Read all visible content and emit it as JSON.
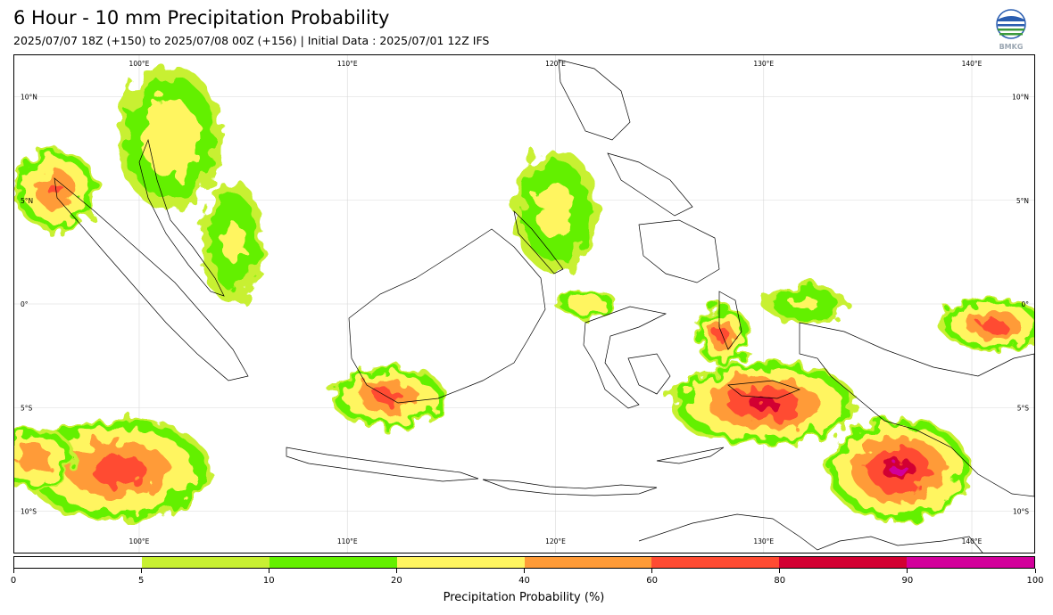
{
  "title": "6 Hour - 10 mm Precipitation Probability",
  "subtitle": "2025/07/07 18Z (+150) to 2025/07/08 00Z (+156) | Initial Data : 2025/07/01 12Z IFS",
  "logo": {
    "icon": "bmkg-logo",
    "text": "BMKG"
  },
  "map": {
    "extent": {
      "lon": [
        94,
        143
      ],
      "lat": [
        -12,
        12
      ]
    },
    "lon_labels_top": [
      "100°E",
      "110°E",
      "120°E",
      "130°E",
      "140°E"
    ],
    "lon_labels_bottom": [
      "100°E",
      "110°E",
      "120°E",
      "130°E",
      "140°E"
    ],
    "lat_labels_left": [
      "10°N",
      "5°N",
      "0°",
      "5°S",
      "10°S"
    ],
    "lat_labels_right": [
      "10°N",
      "5°N",
      "0°",
      "5°S",
      "10°S"
    ],
    "lon_values": [
      100,
      110,
      120,
      130,
      140
    ],
    "lat_values": [
      10,
      5,
      0,
      -5,
      -10
    ],
    "probability_regions": [
      {
        "lon": 99,
        "lat": -8,
        "rx": 4.5,
        "ry": 2.5,
        "peak": 75
      },
      {
        "lon": 95,
        "lat": -7.5,
        "rx": 2,
        "ry": 1.5,
        "peak": 60
      },
      {
        "lon": 96,
        "lat": 5.5,
        "rx": 2,
        "ry": 2,
        "peak": 65
      },
      {
        "lon": 101.5,
        "lat": 8,
        "rx": 2.5,
        "ry": 3.5,
        "peak": 35
      },
      {
        "lon": 104.5,
        "lat": 3,
        "rx": 1.5,
        "ry": 3,
        "peak": 25
      },
      {
        "lon": 112,
        "lat": -4.5,
        "rx": 2.8,
        "ry": 1.5,
        "peak": 70
      },
      {
        "lon": 120,
        "lat": 4.5,
        "rx": 2,
        "ry": 3,
        "peak": 30
      },
      {
        "lon": 121.5,
        "lat": 0,
        "rx": 1.5,
        "ry": 0.7,
        "peak": 40
      },
      {
        "lon": 128,
        "lat": -1.5,
        "rx": 1.3,
        "ry": 1.5,
        "peak": 70
      },
      {
        "lon": 130,
        "lat": -4.8,
        "rx": 4.5,
        "ry": 2,
        "peak": 85
      },
      {
        "lon": 136.5,
        "lat": -8,
        "rx": 3.5,
        "ry": 2.5,
        "peak": 92
      },
      {
        "lon": 141,
        "lat": -1,
        "rx": 2.5,
        "ry": 1.3,
        "peak": 70
      },
      {
        "lon": 132,
        "lat": 0,
        "rx": 2,
        "ry": 1,
        "peak": 25
      }
    ]
  },
  "colorbar": {
    "label": "Precipitation Probability (%)",
    "ticks": [
      "0",
      "5",
      "10",
      "20",
      "40",
      "60",
      "80",
      "90",
      "100"
    ],
    "bins": [
      {
        "min": 0,
        "max": 5,
        "color": "#ffffff"
      },
      {
        "min": 5,
        "max": 10,
        "color": "#c8f032"
      },
      {
        "min": 10,
        "max": 20,
        "color": "#64f000"
      },
      {
        "min": 20,
        "max": 40,
        "color": "#fff560"
      },
      {
        "min": 40,
        "max": 60,
        "color": "#ff9b37"
      },
      {
        "min": 60,
        "max": 80,
        "color": "#ff4b32"
      },
      {
        "min": 80,
        "max": 90,
        "color": "#d20032"
      },
      {
        "min": 90,
        "max": 100,
        "color": "#d2009b"
      }
    ]
  }
}
